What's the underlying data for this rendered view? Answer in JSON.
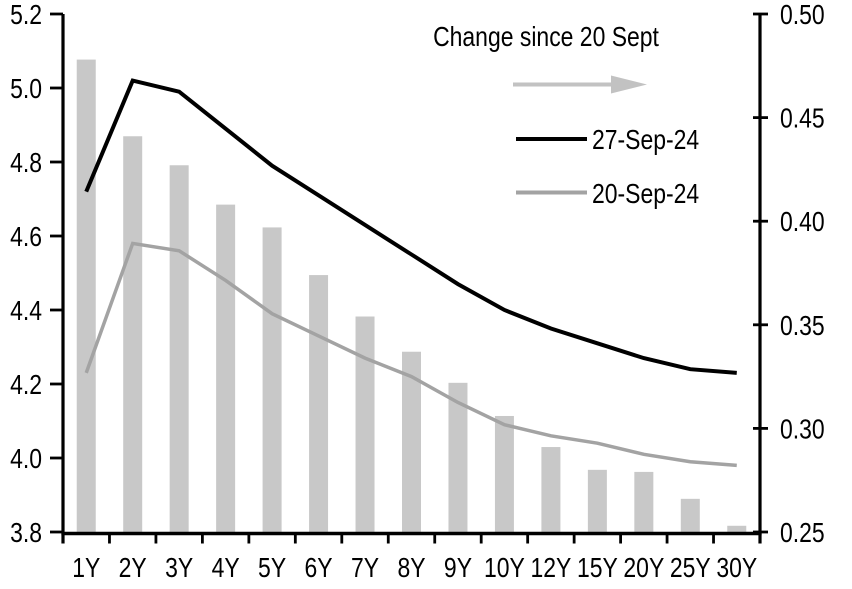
{
  "chart_data": {
    "type": "bar",
    "subtype": "combo-bar-and-lines",
    "title": "",
    "categories": [
      "1Y",
      "2Y",
      "3Y",
      "4Y",
      "5Y",
      "6Y",
      "7Y",
      "8Y",
      "9Y",
      "10Y",
      "12Y",
      "15Y",
      "20Y",
      "25Y",
      "30Y"
    ],
    "series": [
      {
        "name": "Change since 20 Sept",
        "type": "bar",
        "axis": "right",
        "color": "#C8C8C8",
        "values": [
          0.478,
          0.441,
          0.427,
          0.408,
          0.397,
          0.374,
          0.354,
          0.337,
          0.322,
          0.306,
          0.291,
          0.28,
          0.279,
          0.266,
          0.253
        ]
      },
      {
        "name": "27-Sep-24",
        "type": "line",
        "axis": "left",
        "color": "#000000",
        "values": [
          4.72,
          5.02,
          4.99,
          4.89,
          4.79,
          4.71,
          4.63,
          4.55,
          4.47,
          4.4,
          4.35,
          4.31,
          4.27,
          4.24,
          4.23
        ]
      },
      {
        "name": "20-Sep-24",
        "type": "line",
        "axis": "left",
        "color": "#A3A3A3",
        "values": [
          4.23,
          4.58,
          4.56,
          4.48,
          4.39,
          4.33,
          4.27,
          4.22,
          4.15,
          4.09,
          4.06,
          4.04,
          4.01,
          3.99,
          3.98
        ]
      }
    ],
    "left_axis": {
      "min": 3.8,
      "max": 5.2,
      "step": 0.2,
      "tick_labels": [
        "3.8",
        "4.0",
        "4.2",
        "4.4",
        "4.6",
        "4.8",
        "5.0",
        "5.2"
      ]
    },
    "right_axis": {
      "min": 0.25,
      "max": 0.5,
      "step": 0.05,
      "tick_labels": [
        "0.25",
        "0.30",
        "0.35",
        "0.40",
        "0.45",
        "0.50"
      ]
    },
    "xlabel": "",
    "ylabel": "",
    "grid": false,
    "legend_position": "top-right-inside",
    "legend": {
      "title": "Change since 20 Sept",
      "arrow_icon": "right-arrow",
      "arrow_color": "#C2C2C2",
      "entries": [
        {
          "label": "27-Sep-24",
          "color": "#000000"
        },
        {
          "label": "20-Sep-24",
          "color": "#A3A3A3"
        }
      ]
    },
    "axis_color": "#000000"
  }
}
